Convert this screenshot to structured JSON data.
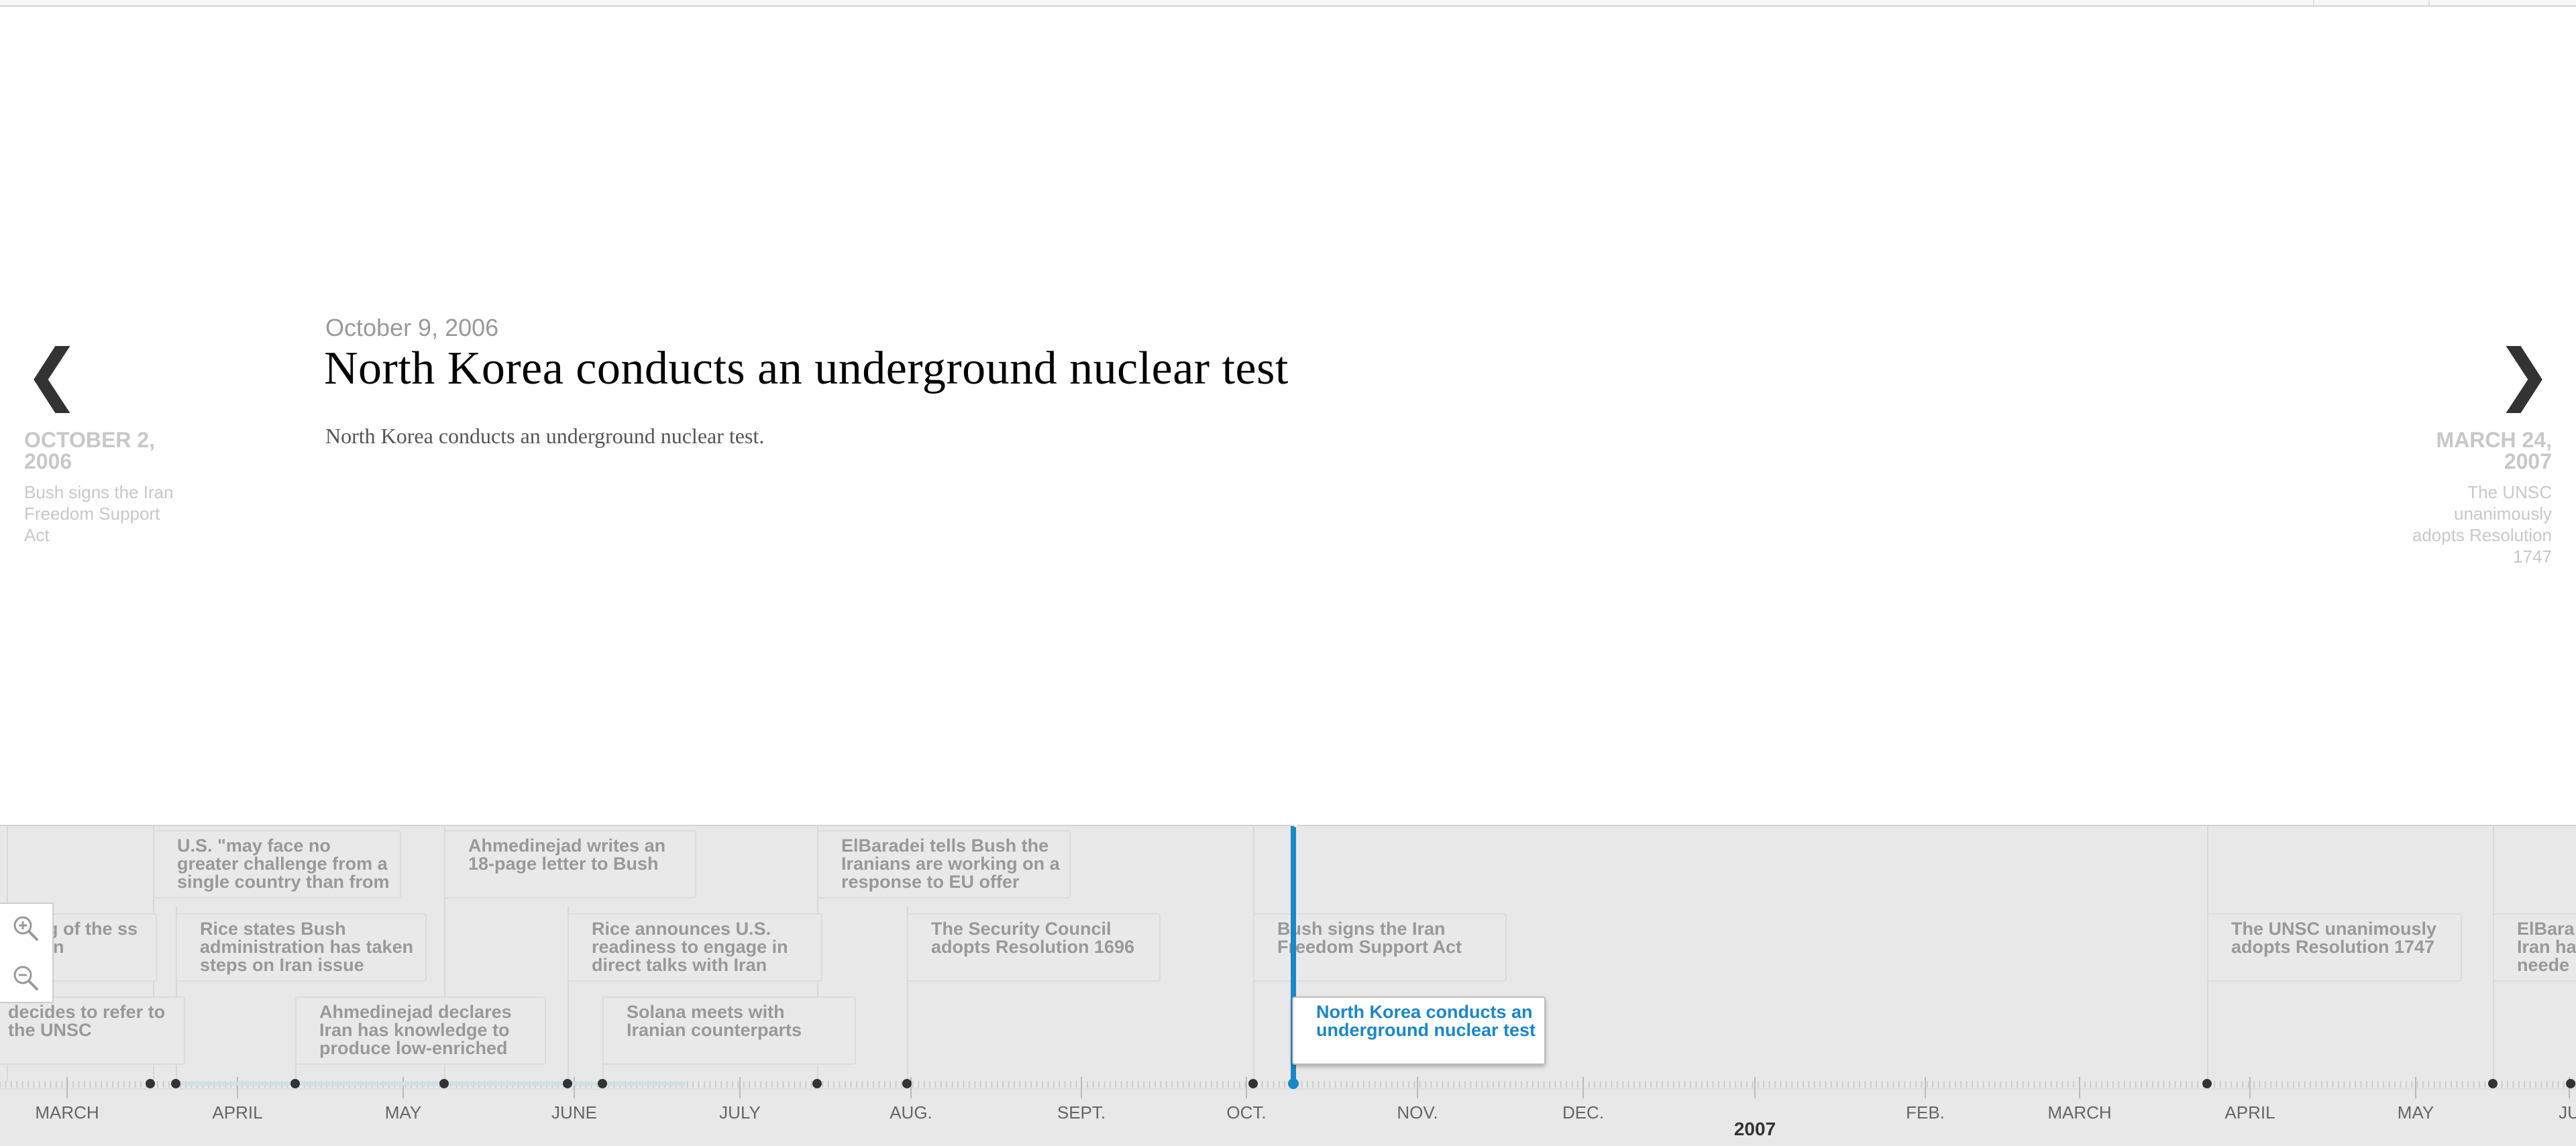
{
  "slide": {
    "date": "October 9, 2006",
    "headline": "North Korea conducts an underground nuclear test",
    "text": "North Korea conducts an underground nuclear test."
  },
  "nav": {
    "prev": {
      "date": "OCTOBER 2, 2006",
      "title": "Bush signs the Iran Freedom Support Act",
      "icon": "chevron-left-icon"
    },
    "next": {
      "date": "MARCH 24, 2007",
      "title": "The UNSC unanimously adopts Resolution 1747",
      "icon": "chevron-right-icon"
    }
  },
  "zoom": {
    "in_icon": "zoom-in-icon",
    "out_icon": "zoom-out-icon"
  },
  "markers": [
    {
      "text": "U.S. \"may face no greater challenge from a single country than from"
    },
    {
      "text": "Ahmedinejad writes an 18-page letter to Bush"
    },
    {
      "text": "ElBaradei tells Bush the Iranians are working on a response to EU offer"
    },
    {
      "text": "ing of the ss Iran"
    },
    {
      "text": "Rice states Bush administration has taken steps on Iran issue"
    },
    {
      "text": "Rice announces U.S. readiness to engage in direct talks with Iran"
    },
    {
      "text": "The Security Council adopts Resolution 1696"
    },
    {
      "text": "Bush signs the Iran Freedom Support Act"
    },
    {
      "text": "The UNSC unanimously adopts Resolution 1747"
    },
    {
      "text": "ElBara Iran ha neede"
    },
    {
      "text": "decides to refer to the UNSC"
    },
    {
      "text": "Ahmedinejad declares Iran has knowledge to produce low-enriched"
    },
    {
      "text": "Solana meets with Iranian counterparts"
    },
    {
      "text": "North Korea conducts an underground nuclear test"
    }
  ],
  "axis": {
    "months": [
      "MARCH",
      "APRIL",
      "MAY",
      "JUNE",
      "JULY",
      "AUG.",
      "SEPT.",
      "OCT.",
      "NOV.",
      "DEC.",
      "FEB.",
      "MARCH",
      "APRIL",
      "MAY",
      "JU"
    ],
    "year": "2007"
  },
  "colors": {
    "accent": "#1a87c7",
    "background": "#e8e8e8"
  }
}
